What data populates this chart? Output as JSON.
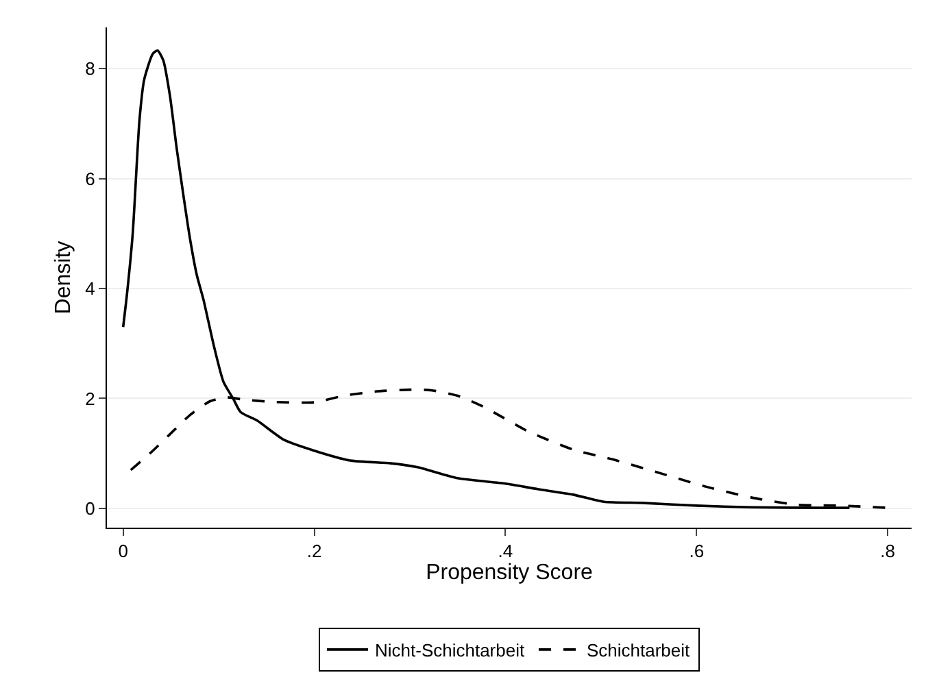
{
  "chart_data": {
    "type": "line",
    "xlabel": "Propensity Score",
    "ylabel": "Density",
    "xlim": [
      -0.017,
      0.825
    ],
    "xticks": [
      {
        "value": 0,
        "label": "0"
      },
      {
        "value": 0.2,
        "label": ".2"
      },
      {
        "value": 0.4,
        "label": ".4"
      },
      {
        "value": 0.6,
        "label": ".6"
      },
      {
        "value": 0.8,
        "label": ".8"
      }
    ],
    "ylim": [
      -0.35,
      8.75
    ],
    "yticks": [
      0,
      2,
      4,
      6,
      8
    ],
    "grid": "y",
    "legend": "bottom",
    "marker": "none",
    "series": [
      {
        "name": "Nicht-Schichtarbeit",
        "color": "#000000",
        "line_style": "solid",
        "x": [
          0,
          0.004,
          0.01,
          0.017,
          0.022,
          0.031,
          0.036,
          0.042,
          0.049,
          0.056,
          0.063,
          0.07,
          0.077,
          0.084,
          0.095,
          0.105,
          0.115,
          0.123,
          0.14,
          0.168,
          0.2,
          0.238,
          0.28,
          0.308,
          0.35,
          0.4,
          0.434,
          0.471,
          0.503,
          0.543,
          0.6,
          0.657,
          0.741,
          0.76
        ],
        "values": [
          3.3,
          3.9,
          5.0,
          7.05,
          7.8,
          8.27,
          8.33,
          8.15,
          7.5,
          6.55,
          5.7,
          4.9,
          4.25,
          3.8,
          2.95,
          2.3,
          2.0,
          1.75,
          1.6,
          1.25,
          1.05,
          0.87,
          0.82,
          0.75,
          0.55,
          0.45,
          0.35,
          0.25,
          0.12,
          0.1,
          0.05,
          0.02,
          0.01,
          0.01
        ]
      },
      {
        "name": "Schichtarbeit",
        "color": "#000000",
        "line_style": "dashed",
        "x": [
          0.008,
          0.028,
          0.049,
          0.07,
          0.091,
          0.108,
          0.126,
          0.154,
          0.2,
          0.231,
          0.266,
          0.301,
          0.322,
          0.35,
          0.378,
          0.424,
          0.471,
          0.517,
          0.564,
          0.611,
          0.657,
          0.703,
          0.751,
          0.801
        ],
        "values": [
          0.7,
          1.0,
          1.35,
          1.7,
          1.95,
          2.02,
          1.98,
          1.94,
          1.93,
          2.05,
          2.13,
          2.16,
          2.15,
          2.05,
          1.84,
          1.4,
          1.07,
          0.87,
          0.63,
          0.39,
          0.2,
          0.07,
          0.05,
          0.01
        ]
      }
    ]
  }
}
